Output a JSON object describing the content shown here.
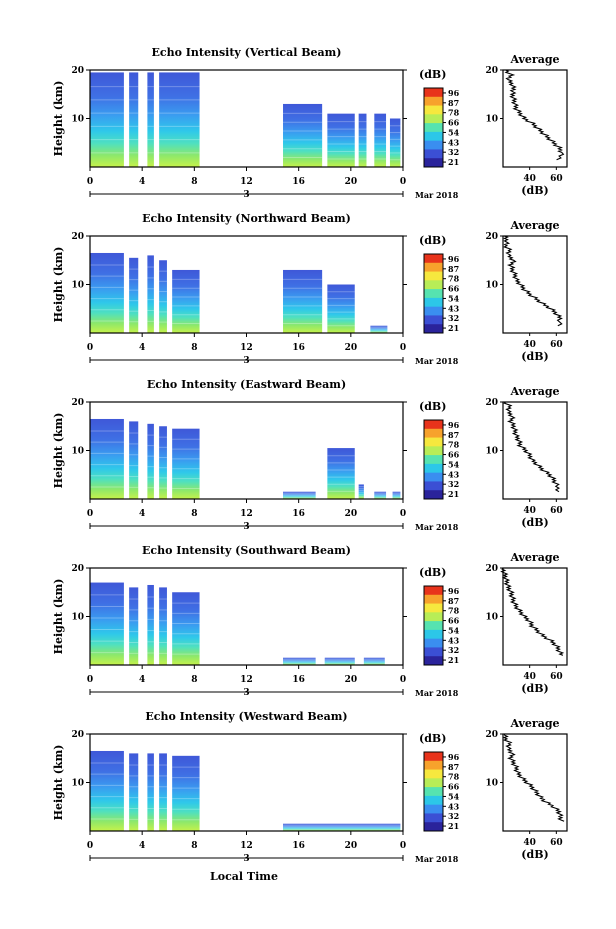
{
  "colorbar": {
    "unit": "(dB)",
    "tick_labels": [
      "96",
      "87",
      "78",
      "66",
      "54",
      "43",
      "32",
      "21"
    ],
    "colors": [
      "#e8331b",
      "#f7a22c",
      "#f6e83e",
      "#b8ed57",
      "#56e3b0",
      "#2cc7e8",
      "#3a8ef0",
      "#3b4fd4",
      "#2a239b"
    ]
  },
  "shared": {
    "date_label": "Mar 2018",
    "day_label": "3",
    "x_axis_label": "Local Time",
    "x_ticks": [
      "0",
      "4",
      "8",
      "12",
      "16",
      "20",
      "0"
    ],
    "y_ticks": [
      "20",
      "10"
    ],
    "avg_title": "Average",
    "avg_xlabel": "(dB)",
    "ylabel": "Height (km)"
  },
  "chart_data": [
    {
      "type": "heatmap",
      "title": "Echo Intensity (Vertical Beam)",
      "xlabel": "",
      "ylabel": "Height (km)",
      "ylim": [
        0,
        20
      ],
      "xlim": [
        0,
        24
      ],
      "segments": [
        {
          "t0": 0.0,
          "t1": 2.6,
          "top": 19.5
        },
        {
          "t0": 3.0,
          "t1": 3.7,
          "top": 19.5
        },
        {
          "t0": 4.4,
          "t1": 4.9,
          "top": 19.5
        },
        {
          "t0": 5.3,
          "t1": 8.4,
          "top": 19.5
        },
        {
          "t0": 14.8,
          "t1": 17.8,
          "top": 13.0
        },
        {
          "t0": 18.2,
          "t1": 20.3,
          "top": 11.0
        },
        {
          "t0": 20.6,
          "t1": 21.2,
          "top": 11.0
        },
        {
          "t0": 21.8,
          "t1": 22.7,
          "top": 11.0
        },
        {
          "t0": 23.0,
          "t1": 23.8,
          "top": 10.0
        }
      ],
      "average": {
        "x_ticks": [
          "40",
          "60"
        ],
        "xlim": [
          20,
          68
        ],
        "profile": [
          [
            62,
            1.5
          ],
          [
            64,
            3
          ],
          [
            62,
            4
          ],
          [
            58,
            5
          ],
          [
            54,
            6
          ],
          [
            50,
            7
          ],
          [
            46,
            8
          ],
          [
            42,
            9
          ],
          [
            36,
            10
          ],
          [
            33,
            11
          ],
          [
            30,
            12
          ],
          [
            29,
            13
          ],
          [
            28,
            14
          ],
          [
            27,
            15
          ],
          [
            28,
            16
          ],
          [
            27,
            17
          ],
          [
            24,
            18
          ],
          [
            26,
            19
          ],
          [
            22,
            20
          ]
        ]
      }
    },
    {
      "type": "heatmap",
      "title": "Echo Intensity (Northward Beam)",
      "xlabel": "",
      "ylabel": "Height (km)",
      "ylim": [
        0,
        20
      ],
      "xlim": [
        0,
        24
      ],
      "segments": [
        {
          "t0": 0.0,
          "t1": 2.6,
          "top": 16.5
        },
        {
          "t0": 3.0,
          "t1": 3.7,
          "top": 15.5
        },
        {
          "t0": 4.4,
          "t1": 4.9,
          "top": 16.0
        },
        {
          "t0": 5.3,
          "t1": 5.9,
          "top": 15.0
        },
        {
          "t0": 6.3,
          "t1": 8.4,
          "top": 13.0
        },
        {
          "t0": 14.8,
          "t1": 17.8,
          "top": 13.0
        },
        {
          "t0": 18.2,
          "t1": 20.3,
          "top": 10.0
        },
        {
          "t0": 21.5,
          "t1": 22.8,
          "top": 1.5
        }
      ],
      "average": {
        "x_ticks": [
          "40",
          "60"
        ],
        "xlim": [
          20,
          68
        ],
        "profile": [
          [
            62,
            1.5
          ],
          [
            63,
            3
          ],
          [
            60,
            4
          ],
          [
            56,
            5
          ],
          [
            50,
            6
          ],
          [
            45,
            7
          ],
          [
            40,
            8
          ],
          [
            36,
            9
          ],
          [
            33,
            10
          ],
          [
            30,
            11
          ],
          [
            29,
            12
          ],
          [
            27,
            13
          ],
          [
            26,
            14
          ],
          [
            28,
            15
          ],
          [
            24,
            16
          ],
          [
            25,
            17
          ],
          [
            22,
            18
          ],
          [
            23,
            19
          ],
          [
            21,
            20
          ]
        ]
      }
    },
    {
      "type": "heatmap",
      "title": "Echo Intensity (Eastward Beam)",
      "xlabel": "",
      "ylabel": "Height (km)",
      "ylim": [
        0,
        20
      ],
      "xlim": [
        0,
        24
      ],
      "segments": [
        {
          "t0": 0.0,
          "t1": 2.6,
          "top": 16.5
        },
        {
          "t0": 3.0,
          "t1": 3.7,
          "top": 16.0
        },
        {
          "t0": 4.4,
          "t1": 4.9,
          "top": 15.5
        },
        {
          "t0": 5.3,
          "t1": 5.9,
          "top": 15.0
        },
        {
          "t0": 6.3,
          "t1": 8.4,
          "top": 14.5
        },
        {
          "t0": 14.8,
          "t1": 17.3,
          "top": 1.5
        },
        {
          "t0": 18.2,
          "t1": 20.3,
          "top": 10.5
        },
        {
          "t0": 20.6,
          "t1": 21.0,
          "top": 3.0
        },
        {
          "t0": 21.8,
          "t1": 22.7,
          "top": 1.5
        },
        {
          "t0": 23.2,
          "t1": 23.8,
          "top": 1.5
        }
      ],
      "average": {
        "x_ticks": [
          "40",
          "60"
        ],
        "xlim": [
          20,
          68
        ],
        "profile": [
          [
            62,
            1.5
          ],
          [
            60,
            3
          ],
          [
            58,
            4
          ],
          [
            55,
            5
          ],
          [
            50,
            6
          ],
          [
            46,
            7
          ],
          [
            42,
            8
          ],
          [
            40,
            9
          ],
          [
            37,
            10
          ],
          [
            33,
            11
          ],
          [
            32,
            12
          ],
          [
            30,
            13
          ],
          [
            29,
            14
          ],
          [
            28,
            15
          ],
          [
            26,
            16
          ],
          [
            27,
            17
          ],
          [
            24,
            18
          ],
          [
            25,
            19
          ],
          [
            22,
            20
          ]
        ]
      }
    },
    {
      "type": "heatmap",
      "title": "Echo Intensity (Southward Beam)",
      "xlabel": "",
      "ylabel": "Height (km)",
      "ylim": [
        0,
        20
      ],
      "xlim": [
        0,
        24
      ],
      "segments": [
        {
          "t0": 0.0,
          "t1": 2.6,
          "top": 17.0
        },
        {
          "t0": 3.0,
          "t1": 3.7,
          "top": 16.0
        },
        {
          "t0": 4.4,
          "t1": 4.9,
          "top": 16.5
        },
        {
          "t0": 5.3,
          "t1": 5.9,
          "top": 16.0
        },
        {
          "t0": 6.3,
          "t1": 8.4,
          "top": 15.0
        },
        {
          "t0": 14.8,
          "t1": 17.3,
          "top": 1.5
        },
        {
          "t0": 18.0,
          "t1": 20.3,
          "top": 1.5
        },
        {
          "t0": 21.0,
          "t1": 22.6,
          "top": 1.5
        }
      ],
      "average": {
        "x_ticks": [
          "40",
          "60"
        ],
        "xlim": [
          20,
          68
        ],
        "profile": [
          [
            64,
            2
          ],
          [
            62,
            3
          ],
          [
            60,
            4
          ],
          [
            56,
            5
          ],
          [
            50,
            6
          ],
          [
            46,
            7
          ],
          [
            42,
            8
          ],
          [
            40,
            9
          ],
          [
            36,
            10
          ],
          [
            33,
            11
          ],
          [
            30,
            12
          ],
          [
            28,
            13
          ],
          [
            27,
            14
          ],
          [
            26,
            15
          ],
          [
            24,
            16
          ],
          [
            23,
            17
          ],
          [
            22,
            18
          ],
          [
            21,
            19
          ],
          [
            20,
            20
          ]
        ]
      }
    },
    {
      "type": "heatmap",
      "title": "Echo Intensity (Westward Beam)",
      "xlabel": "",
      "ylabel": "Height (km)",
      "ylim": [
        0,
        20
      ],
      "xlim": [
        0,
        24
      ],
      "segments": [
        {
          "t0": 0.0,
          "t1": 2.6,
          "top": 16.5
        },
        {
          "t0": 3.0,
          "t1": 3.7,
          "top": 16.0
        },
        {
          "t0": 4.4,
          "t1": 4.9,
          "top": 16.0
        },
        {
          "t0": 5.3,
          "t1": 5.9,
          "top": 16.0
        },
        {
          "t0": 6.3,
          "t1": 8.4,
          "top": 15.5
        },
        {
          "t0": 14.8,
          "t1": 23.8,
          "top": 1.5
        }
      ],
      "average": {
        "x_ticks": [
          "40",
          "60"
        ],
        "xlim": [
          20,
          68
        ],
        "profile": [
          [
            64,
            2
          ],
          [
            63,
            3
          ],
          [
            62,
            4
          ],
          [
            58,
            5
          ],
          [
            52,
            6
          ],
          [
            48,
            7
          ],
          [
            45,
            8
          ],
          [
            42,
            9
          ],
          [
            38,
            10
          ],
          [
            34,
            11
          ],
          [
            31,
            12
          ],
          [
            30,
            13
          ],
          [
            28,
            14
          ],
          [
            26,
            15
          ],
          [
            27,
            16
          ],
          [
            24,
            17
          ],
          [
            25,
            18
          ],
          [
            22,
            19
          ],
          [
            21,
            20
          ]
        ]
      }
    }
  ]
}
